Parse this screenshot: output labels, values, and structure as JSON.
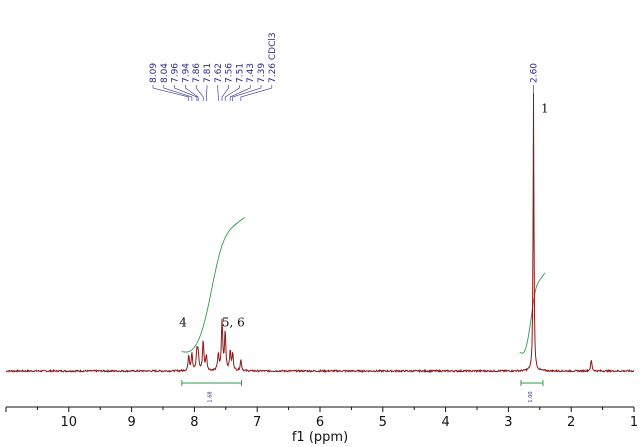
{
  "chart_data": {
    "type": "line",
    "xlabel": "f1 (ppm)",
    "xlim": [
      11.0,
      1.0
    ],
    "x_reversed": true,
    "x_ticks": [
      10,
      9,
      8,
      7,
      6,
      5,
      4,
      3,
      2,
      1
    ],
    "grid": false,
    "colors": {
      "spectrum": "#8b1a1a",
      "integral": "#2e9e4a",
      "peak_label": "#2a2a8a",
      "axis": "#111111"
    },
    "peak_labels": [
      {
        "text": "8.09",
        "ppm": 8.09
      },
      {
        "text": "8.04",
        "ppm": 8.04
      },
      {
        "text": "7.96",
        "ppm": 7.96
      },
      {
        "text": "7.94",
        "ppm": 7.94
      },
      {
        "text": "7.86",
        "ppm": 7.86
      },
      {
        "text": "7.81",
        "ppm": 7.81
      },
      {
        "text": "7.62",
        "ppm": 7.62
      },
      {
        "text": "7.56",
        "ppm": 7.56
      },
      {
        "text": "7.51",
        "ppm": 7.51
      },
      {
        "text": "7.43",
        "ppm": 7.43
      },
      {
        "text": "7.39",
        "ppm": 7.39
      },
      {
        "text": "7.26 CDCl3",
        "ppm": 7.26
      }
    ],
    "peak_labels_right": [
      {
        "text": "2.60",
        "ppm": 2.6
      }
    ],
    "annotations": [
      {
        "text": "1",
        "ppm": 2.42,
        "level": 0.93
      },
      {
        "text": "4",
        "ppm": 8.18,
        "level": 0.16
      },
      {
        "text": "5, 6",
        "ppm": 7.38,
        "level": 0.16
      }
    ],
    "peaks": [
      {
        "ppm": 8.09,
        "height": 0.055
      },
      {
        "ppm": 8.04,
        "height": 0.065
      },
      {
        "ppm": 7.96,
        "height": 0.07
      },
      {
        "ppm": 7.94,
        "height": 0.06
      },
      {
        "ppm": 7.86,
        "height": 0.11
      },
      {
        "ppm": 7.81,
        "height": 0.055
      },
      {
        "ppm": 7.62,
        "height": 0.06
      },
      {
        "ppm": 7.56,
        "height": 0.18
      },
      {
        "ppm": 7.51,
        "height": 0.14
      },
      {
        "ppm": 7.43,
        "height": 0.07
      },
      {
        "ppm": 7.39,
        "height": 0.06
      },
      {
        "ppm": 7.26,
        "height": 0.04
      },
      {
        "ppm": 2.6,
        "height": 1.0
      },
      {
        "ppm": 1.68,
        "height": 0.04
      }
    ],
    "integrals": [
      {
        "from_ppm": 8.2,
        "to_ppm": 7.25,
        "value": "1.68"
      },
      {
        "from_ppm": 2.8,
        "to_ppm": 2.45,
        "value": "1.00"
      }
    ]
  }
}
